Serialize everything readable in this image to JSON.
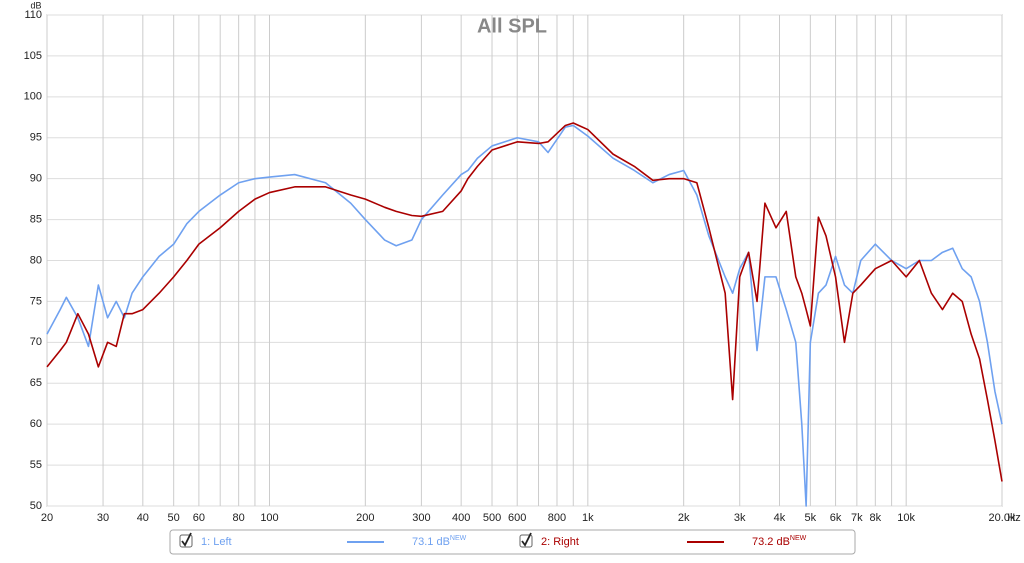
{
  "chart_data": {
    "type": "line",
    "title": "All SPL",
    "ylabel": "dB",
    "xlabel": "Hz",
    "xscale": "log",
    "grid": true,
    "xlim": [
      20,
      20000
    ],
    "ylim": [
      50,
      110
    ],
    "yticks": [
      50,
      55,
      60,
      65,
      70,
      75,
      80,
      85,
      90,
      95,
      100,
      105,
      110
    ],
    "xticks": [
      20,
      30,
      40,
      50,
      60,
      80,
      100,
      200,
      300,
      400,
      500,
      600,
      800,
      {
        "value": 1000,
        "label": "1k"
      },
      {
        "value": 2000,
        "label": "2k"
      },
      {
        "value": 3000,
        "label": "3k"
      },
      {
        "value": 4000,
        "label": "4k"
      },
      {
        "value": 5000,
        "label": "5k"
      },
      {
        "value": 6000,
        "label": "6k"
      },
      {
        "value": 7000,
        "label": "7k"
      },
      {
        "value": 8000,
        "label": "8k"
      },
      {
        "value": 10000,
        "label": "10k"
      },
      {
        "value": 20000,
        "label": "20.0k"
      }
    ],
    "xminor": [
      70,
      90,
      700,
      900,
      9000
    ],
    "x": [
      20,
      22,
      23,
      25,
      27,
      29,
      31,
      33,
      35,
      37,
      40,
      45,
      50,
      55,
      60,
      70,
      80,
      90,
      100,
      120,
      150,
      180,
      200,
      230,
      250,
      280,
      300,
      350,
      400,
      420,
      450,
      500,
      600,
      700,
      750,
      850,
      900,
      1000,
      1200,
      1400,
      1600,
      1800,
      2000,
      2200,
      2400,
      2700,
      2850,
      3000,
      3200,
      3400,
      3600,
      3900,
      4200,
      4500,
      4700,
      4850,
      5000,
      5300,
      5600,
      6000,
      6400,
      6800,
      7200,
      8000,
      9000,
      10000,
      11000,
      12000,
      13000,
      14000,
      15000,
      16000,
      17000,
      18000,
      19000,
      20000
    ],
    "series": [
      {
        "name": "1: Left",
        "color": "#6fa1f0",
        "legend_value": "73.1 dB",
        "legend_note": "NEW",
        "values": [
          71,
          74,
          75.5,
          73,
          69.5,
          77,
          73,
          75,
          73,
          76,
          78,
          80.5,
          82,
          84.5,
          86,
          88,
          89.5,
          90,
          90.2,
          90.5,
          89.5,
          87,
          85,
          82.5,
          81.8,
          82.5,
          85,
          88,
          90.5,
          91,
          92.5,
          94,
          95,
          94.5,
          93.2,
          96.3,
          96.5,
          95.2,
          92.5,
          91,
          89.5,
          90.5,
          91,
          88,
          83,
          78,
          76,
          79,
          81,
          69,
          78,
          78,
          74,
          70,
          60,
          50,
          70,
          76,
          77,
          80.5,
          77,
          76,
          80,
          82,
          80,
          79,
          80,
          80,
          81,
          81.5,
          79,
          78,
          75,
          70,
          64,
          60
        ]
      },
      {
        "name": "2: Right",
        "color": "#aa0000",
        "legend_value": "73.2 dB",
        "legend_note": "NEW",
        "values": [
          67,
          69,
          70,
          73.5,
          71,
          67,
          70,
          69.5,
          73.5,
          73.5,
          74,
          76,
          78,
          80,
          82,
          84,
          86,
          87.5,
          88.3,
          89,
          89,
          88,
          87.5,
          86.5,
          86,
          85.5,
          85.4,
          86,
          88.5,
          90,
          91.5,
          93.5,
          94.5,
          94.3,
          94.5,
          96.5,
          96.8,
          96,
          93,
          91.5,
          89.8,
          90,
          90,
          89.5,
          84,
          76,
          63,
          78,
          81,
          75,
          87,
          84,
          86,
          78,
          76,
          74,
          72,
          85.3,
          83,
          78,
          70,
          76,
          77,
          79,
          80,
          78,
          80,
          76,
          74,
          76,
          75,
          71,
          68,
          63,
          58,
          53
        ]
      }
    ]
  }
}
